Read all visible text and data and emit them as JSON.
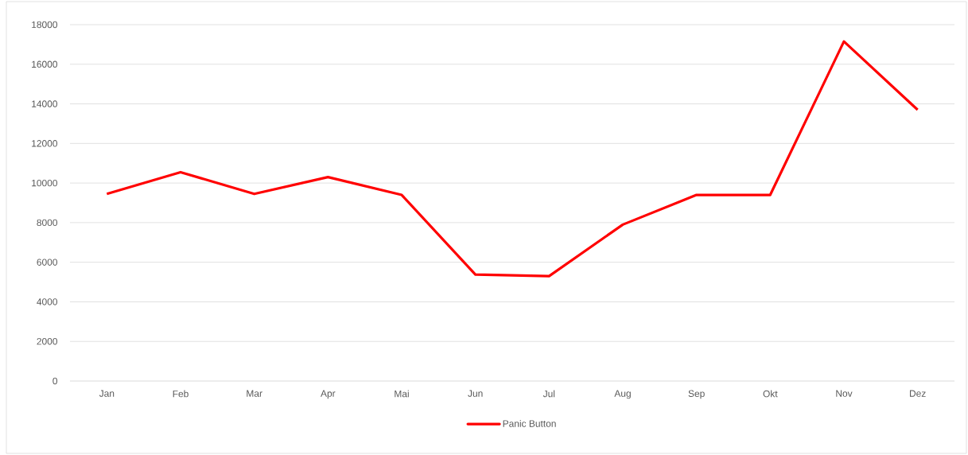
{
  "chart_data": {
    "type": "line",
    "categories": [
      "Jan",
      "Feb",
      "Mar",
      "Apr",
      "Mai",
      "Jun",
      "Jul",
      "Aug",
      "Sep",
      "Okt",
      "Nov",
      "Dez"
    ],
    "series": [
      {
        "name": "Panic Button",
        "color": "#ff0000",
        "values": [
          9450,
          10550,
          9450,
          10300,
          9400,
          5380,
          5300,
          7900,
          9400,
          9400,
          17150,
          13700
        ]
      }
    ],
    "ylim": [
      0,
      18000
    ],
    "yticks": [
      0,
      2000,
      4000,
      6000,
      8000,
      10000,
      12000,
      14000,
      16000,
      18000
    ],
    "grid": "y",
    "legend": "bottom"
  }
}
